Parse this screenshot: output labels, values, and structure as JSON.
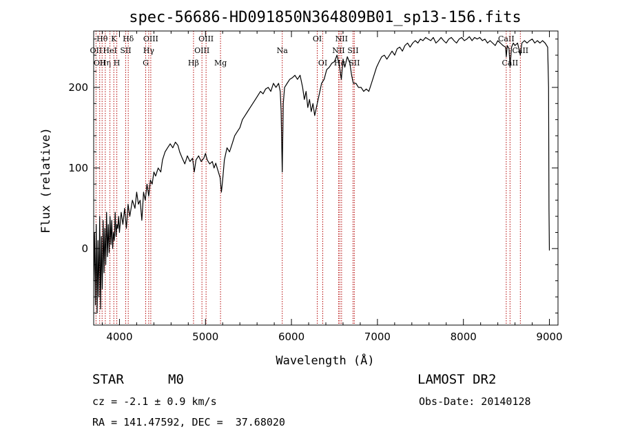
{
  "chart_data": {
    "type": "line",
    "title": "spec-56686-HD091850N364809B01_sp13-156.fits",
    "xlabel": "Wavelength (Å)",
    "ylabel": "Flux (relative)",
    "xlim": [
      3700,
      9100
    ],
    "ylim": [
      -95,
      270
    ],
    "x_ticks": [
      4000,
      5000,
      6000,
      7000,
      8000,
      9000
    ],
    "y_ticks": [
      0,
      100,
      200
    ],
    "grid": false,
    "series": [
      {
        "values": [
          [
            3700,
            -40
          ],
          [
            3710,
            20
          ],
          [
            3720,
            -70
          ],
          [
            3730,
            30
          ],
          [
            3740,
            -80
          ],
          [
            3750,
            10
          ],
          [
            3760,
            -60
          ],
          [
            3770,
            40
          ],
          [
            3780,
            -75
          ],
          [
            3790,
            15
          ],
          [
            3800,
            -50
          ],
          [
            3810,
            35
          ],
          [
            3820,
            -30
          ],
          [
            3830,
            25
          ],
          [
            3840,
            -20
          ],
          [
            3850,
            45
          ],
          [
            3860,
            -10
          ],
          [
            3870,
            30
          ],
          [
            3880,
            -5
          ],
          [
            3890,
            40
          ],
          [
            3900,
            5
          ],
          [
            3910,
            35
          ],
          [
            3920,
            0
          ],
          [
            3930,
            20
          ],
          [
            3940,
            10
          ],
          [
            3950,
            45
          ],
          [
            3960,
            15
          ],
          [
            3970,
            30
          ],
          [
            3980,
            25
          ],
          [
            3990,
            40
          ],
          [
            4000,
            20
          ],
          [
            4020,
            45
          ],
          [
            4040,
            30
          ],
          [
            4060,
            50
          ],
          [
            4080,
            25
          ],
          [
            4100,
            55
          ],
          [
            4120,
            40
          ],
          [
            4150,
            60
          ],
          [
            4180,
            50
          ],
          [
            4200,
            70
          ],
          [
            4220,
            55
          ],
          [
            4240,
            60
          ],
          [
            4260,
            35
          ],
          [
            4280,
            70
          ],
          [
            4300,
            60
          ],
          [
            4320,
            80
          ],
          [
            4340,
            65
          ],
          [
            4360,
            85
          ],
          [
            4380,
            80
          ],
          [
            4400,
            95
          ],
          [
            4420,
            90
          ],
          [
            4450,
            100
          ],
          [
            4480,
            95
          ],
          [
            4500,
            110
          ],
          [
            4530,
            120
          ],
          [
            4560,
            125
          ],
          [
            4590,
            130
          ],
          [
            4620,
            125
          ],
          [
            4650,
            132
          ],
          [
            4680,
            128
          ],
          [
            4700,
            120
          ],
          [
            4730,
            112
          ],
          [
            4760,
            105
          ],
          [
            4790,
            115
          ],
          [
            4820,
            108
          ],
          [
            4850,
            112
          ],
          [
            4870,
            95
          ],
          [
            4890,
            110
          ],
          [
            4920,
            115
          ],
          [
            4950,
            108
          ],
          [
            4980,
            112
          ],
          [
            5000,
            118
          ],
          [
            5020,
            110
          ],
          [
            5050,
            105
          ],
          [
            5080,
            108
          ],
          [
            5100,
            100
          ],
          [
            5120,
            106
          ],
          [
            5150,
            95
          ],
          [
            5170,
            88
          ],
          [
            5185,
            70
          ],
          [
            5200,
            85
          ],
          [
            5220,
            110
          ],
          [
            5250,
            125
          ],
          [
            5280,
            120
          ],
          [
            5310,
            130
          ],
          [
            5340,
            140
          ],
          [
            5370,
            145
          ],
          [
            5400,
            150
          ],
          [
            5430,
            160
          ],
          [
            5460,
            165
          ],
          [
            5490,
            170
          ],
          [
            5520,
            175
          ],
          [
            5550,
            180
          ],
          [
            5580,
            185
          ],
          [
            5610,
            190
          ],
          [
            5640,
            195
          ],
          [
            5670,
            192
          ],
          [
            5700,
            198
          ],
          [
            5730,
            200
          ],
          [
            5760,
            195
          ],
          [
            5790,
            205
          ],
          [
            5820,
            200
          ],
          [
            5850,
            205
          ],
          [
            5870,
            195
          ],
          [
            5880,
            170
          ],
          [
            5893,
            95
          ],
          [
            5905,
            180
          ],
          [
            5920,
            200
          ],
          [
            5950,
            205
          ],
          [
            5980,
            210
          ],
          [
            6010,
            212
          ],
          [
            6040,
            215
          ],
          [
            6070,
            210
          ],
          [
            6100,
            215
          ],
          [
            6130,
            200
          ],
          [
            6150,
            185
          ],
          [
            6170,
            195
          ],
          [
            6190,
            175
          ],
          [
            6210,
            185
          ],
          [
            6230,
            170
          ],
          [
            6250,
            180
          ],
          [
            6270,
            165
          ],
          [
            6290,
            175
          ],
          [
            6310,
            185
          ],
          [
            6330,
            195
          ],
          [
            6350,
            205
          ],
          [
            6380,
            210
          ],
          [
            6410,
            222
          ],
          [
            6440,
            225
          ],
          [
            6470,
            230
          ],
          [
            6500,
            232
          ],
          [
            6530,
            240
          ],
          [
            6560,
            225
          ],
          [
            6580,
            210
          ],
          [
            6600,
            235
          ],
          [
            6620,
            225
          ],
          [
            6650,
            238
          ],
          [
            6680,
            230
          ],
          [
            6700,
            215
          ],
          [
            6720,
            205
          ],
          [
            6750,
            205
          ],
          [
            6780,
            200
          ],
          [
            6810,
            200
          ],
          [
            6840,
            195
          ],
          [
            6870,
            198
          ],
          [
            6900,
            195
          ],
          [
            6930,
            205
          ],
          [
            6960,
            215
          ],
          [
            6990,
            225
          ],
          [
            7020,
            232
          ],
          [
            7050,
            238
          ],
          [
            7080,
            240
          ],
          [
            7110,
            235
          ],
          [
            7140,
            240
          ],
          [
            7170,
            245
          ],
          [
            7200,
            240
          ],
          [
            7230,
            248
          ],
          [
            7260,
            250
          ],
          [
            7290,
            245
          ],
          [
            7320,
            252
          ],
          [
            7350,
            255
          ],
          [
            7380,
            250
          ],
          [
            7410,
            255
          ],
          [
            7440,
            258
          ],
          [
            7470,
            255
          ],
          [
            7500,
            260
          ],
          [
            7530,
            258
          ],
          [
            7560,
            262
          ],
          [
            7590,
            260
          ],
          [
            7620,
            258
          ],
          [
            7650,
            262
          ],
          [
            7680,
            255
          ],
          [
            7710,
            258
          ],
          [
            7740,
            262
          ],
          [
            7770,
            258
          ],
          [
            7800,
            255
          ],
          [
            7830,
            260
          ],
          [
            7860,
            262
          ],
          [
            7890,
            258
          ],
          [
            7920,
            255
          ],
          [
            7950,
            260
          ],
          [
            7980,
            262
          ],
          [
            8010,
            258
          ],
          [
            8040,
            260
          ],
          [
            8070,
            263
          ],
          [
            8100,
            258
          ],
          [
            8130,
            262
          ],
          [
            8160,
            260
          ],
          [
            8190,
            262
          ],
          [
            8220,
            258
          ],
          [
            8250,
            260
          ],
          [
            8280,
            255
          ],
          [
            8310,
            258
          ],
          [
            8340,
            255
          ],
          [
            8370,
            252
          ],
          [
            8400,
            258
          ],
          [
            8430,
            255
          ],
          [
            8460,
            252
          ],
          [
            8490,
            250
          ],
          [
            8498,
            238
          ],
          [
            8510,
            252
          ],
          [
            8530,
            248
          ],
          [
            8542,
            225
          ],
          [
            8560,
            250
          ],
          [
            8580,
            255
          ],
          [
            8600,
            252
          ],
          [
            8630,
            255
          ],
          [
            8662,
            240
          ],
          [
            8680,
            255
          ],
          [
            8710,
            258
          ],
          [
            8740,
            255
          ],
          [
            8770,
            258
          ],
          [
            8800,
            260
          ],
          [
            8830,
            255
          ],
          [
            8860,
            258
          ],
          [
            8890,
            255
          ],
          [
            8920,
            258
          ],
          [
            8950,
            255
          ],
          [
            8980,
            250
          ],
          [
            8990,
            200
          ],
          [
            8995,
            50
          ],
          [
            9000,
            -2
          ],
          [
            9003,
            -2
          ]
        ]
      }
    ],
    "line_markers": [
      {
        "wl": 3727,
        "label": "OII",
        "row": 1
      },
      {
        "wl": 3770,
        "label": "OII",
        "row": 2
      },
      {
        "wl": 3798,
        "label": "Hθ",
        "row": 0
      },
      {
        "wl": 3835,
        "label": "Hη",
        "row": 2
      },
      {
        "wl": 3889,
        "label": "HeI",
        "row": 1
      },
      {
        "wl": 3934,
        "label": "K",
        "row": 0
      },
      {
        "wl": 3969,
        "label": "H",
        "row": 2
      },
      {
        "wl": 4072,
        "label": "SII",
        "row": 1
      },
      {
        "wl": 4102,
        "label": "Hδ",
        "row": 0
      },
      {
        "wl": 4305,
        "label": "G",
        "row": 2
      },
      {
        "wl": 4340,
        "label": "Hγ",
        "row": 1
      },
      {
        "wl": 4364,
        "label": "OIII",
        "row": 0
      },
      {
        "wl": 4861,
        "label": "Hβ",
        "row": 2
      },
      {
        "wl": 4959,
        "label": "OIII",
        "row": 1
      },
      {
        "wl": 5007,
        "label": "OIII",
        "row": 0
      },
      {
        "wl": 5175,
        "label": "Mg",
        "row": 2
      },
      {
        "wl": 5893,
        "label": "Na",
        "row": 1
      },
      {
        "wl": 6300,
        "label": "OI",
        "row": 0
      },
      {
        "wl": 6364,
        "label": "OI",
        "row": 2
      },
      {
        "wl": 6548,
        "label": "NII",
        "row": 1
      },
      {
        "wl": 6563,
        "label": "Hα",
        "row": 2
      },
      {
        "wl": 6583,
        "label": "NII",
        "row": 0
      },
      {
        "wl": 6716,
        "label": "SII",
        "row": 1
      },
      {
        "wl": 6731,
        "label": "SII",
        "row": 2
      },
      {
        "wl": 8498,
        "label": "CaII",
        "row": 0
      },
      {
        "wl": 8542,
        "label": "CaII",
        "row": 2
      },
      {
        "wl": 8662,
        "label": "CaII",
        "row": 1
      }
    ]
  },
  "info": {
    "class": "STAR",
    "subclass": "M0",
    "survey": "LAMOST DR2",
    "cz": "cz = -2.1 ± 0.9 km/s",
    "obs_date": "Obs-Date: 20140128",
    "coords": "RA = 141.47592, DEC =  37.68020"
  },
  "colors": {
    "line_marker": "#b30000",
    "spectrum": "#000000"
  }
}
